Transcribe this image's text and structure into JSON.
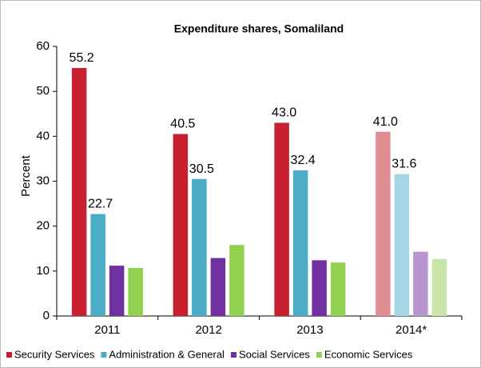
{
  "chart_data": {
    "type": "bar",
    "title": "Expenditure shares, Somaliland",
    "y_label": "Percent",
    "categories": [
      "2011",
      "2012",
      "2013",
      "2014*"
    ],
    "series": [
      {
        "name": "Security Services",
        "color": "#c8202f",
        "colors": [
          "#c8202f",
          "#c8202f",
          "#c8202f",
          "#e08d94"
        ],
        "values": [
          55.2,
          40.5,
          43.0,
          41.0
        ],
        "value_labels": [
          "55.2",
          "40.5",
          "43.0",
          "41.0"
        ]
      },
      {
        "name": "Administration & General",
        "color": "#4bacc6",
        "colors": [
          "#4bacc6",
          "#4bacc6",
          "#4bacc6",
          "#a6d6e3"
        ],
        "values": [
          22.7,
          30.5,
          32.4,
          31.6
        ],
        "value_labels": [
          "22.7",
          "30.5",
          "32.4",
          "31.6"
        ]
      },
      {
        "name": "Social Services",
        "color": "#7030a0",
        "colors": [
          "#7030a0",
          "#7030a0",
          "#7030a0",
          "#b896cf"
        ],
        "values": [
          11.2,
          12.9,
          12.4,
          14.3
        ]
      },
      {
        "name": "Economic Services",
        "color": "#92d050",
        "colors": [
          "#92d050",
          "#92d050",
          "#92d050",
          "#c9e6a8"
        ],
        "values": [
          10.7,
          15.8,
          11.9,
          12.7
        ]
      }
    ],
    "ylim": [
      0,
      60
    ],
    "yticks": [
      0,
      10,
      20,
      30,
      40,
      50,
      60
    ],
    "grid": false,
    "legend": "bottom"
  }
}
